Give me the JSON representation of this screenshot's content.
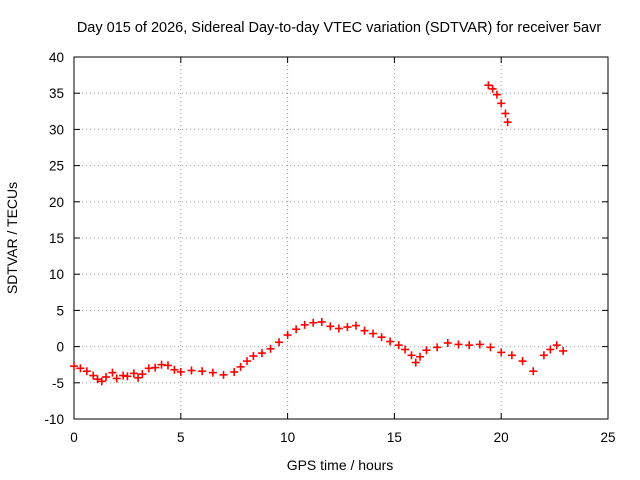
{
  "chart_data": {
    "type": "scatter",
    "title": "Day 015 of 2026, Sidereal Day-to-day VTEC variation (SDTVAR) for receiver 5avr",
    "xlabel": "GPS time / hours",
    "ylabel": "SDTVAR / TECUs",
    "xlim": [
      0,
      25
    ],
    "ylim": [
      -10,
      40
    ],
    "x_ticks": [
      "0",
      "5",
      "10",
      "15",
      "20",
      "25"
    ],
    "y_ticks": [
      "-10",
      "-5",
      "0",
      "5",
      "10",
      "15",
      "20",
      "25",
      "30",
      "35",
      "40"
    ],
    "grid": true,
    "marker": "+",
    "series_color": "#ff0000",
    "series": [
      {
        "name": "SDTVAR",
        "points": [
          [
            0.0,
            -2.7
          ],
          [
            0.3,
            -3.0
          ],
          [
            0.6,
            -3.4
          ],
          [
            0.9,
            -4.0
          ],
          [
            1.1,
            -4.5
          ],
          [
            1.3,
            -4.8
          ],
          [
            1.5,
            -4.2
          ],
          [
            1.8,
            -3.6
          ],
          [
            2.0,
            -4.4
          ],
          [
            2.3,
            -4.0
          ],
          [
            2.5,
            -4.1
          ],
          [
            2.8,
            -3.7
          ],
          [
            3.0,
            -4.3
          ],
          [
            3.2,
            -3.8
          ],
          [
            3.5,
            -3.0
          ],
          [
            3.8,
            -2.9
          ],
          [
            4.1,
            -2.5
          ],
          [
            4.4,
            -2.6
          ],
          [
            4.7,
            -3.2
          ],
          [
            5.0,
            -3.5
          ],
          [
            5.5,
            -3.3
          ],
          [
            6.0,
            -3.4
          ],
          [
            6.5,
            -3.6
          ],
          [
            7.0,
            -3.9
          ],
          [
            7.5,
            -3.5
          ],
          [
            7.8,
            -2.8
          ],
          [
            8.1,
            -2.0
          ],
          [
            8.4,
            -1.3
          ],
          [
            8.8,
            -0.9
          ],
          [
            9.2,
            -0.3
          ],
          [
            9.6,
            0.6
          ],
          [
            10.0,
            1.6
          ],
          [
            10.4,
            2.4
          ],
          [
            10.8,
            3.0
          ],
          [
            11.2,
            3.3
          ],
          [
            11.6,
            3.4
          ],
          [
            12.0,
            2.8
          ],
          [
            12.4,
            2.5
          ],
          [
            12.8,
            2.7
          ],
          [
            13.2,
            2.9
          ],
          [
            13.6,
            2.2
          ],
          [
            14.0,
            1.8
          ],
          [
            14.4,
            1.3
          ],
          [
            14.8,
            0.7
          ],
          [
            15.2,
            0.2
          ],
          [
            15.5,
            -0.4
          ],
          [
            15.8,
            -1.2
          ],
          [
            16.0,
            -2.2
          ],
          [
            16.2,
            -1.4
          ],
          [
            16.5,
            -0.5
          ],
          [
            17.0,
            -0.1
          ],
          [
            17.5,
            0.5
          ],
          [
            18.0,
            0.3
          ],
          [
            18.5,
            0.2
          ],
          [
            19.0,
            0.3
          ],
          [
            19.5,
            -0.1
          ],
          [
            20.0,
            -0.8
          ],
          [
            20.5,
            -1.2
          ],
          [
            21.0,
            -2.0
          ],
          [
            21.5,
            -3.4
          ],
          [
            22.0,
            -1.2
          ],
          [
            22.3,
            -0.4
          ],
          [
            22.6,
            0.2
          ],
          [
            22.9,
            -0.6
          ],
          [
            19.4,
            36.1
          ],
          [
            19.6,
            35.6
          ],
          [
            19.8,
            34.8
          ],
          [
            20.0,
            33.6
          ],
          [
            20.2,
            32.2
          ],
          [
            20.3,
            31.0
          ]
        ]
      }
    ]
  }
}
